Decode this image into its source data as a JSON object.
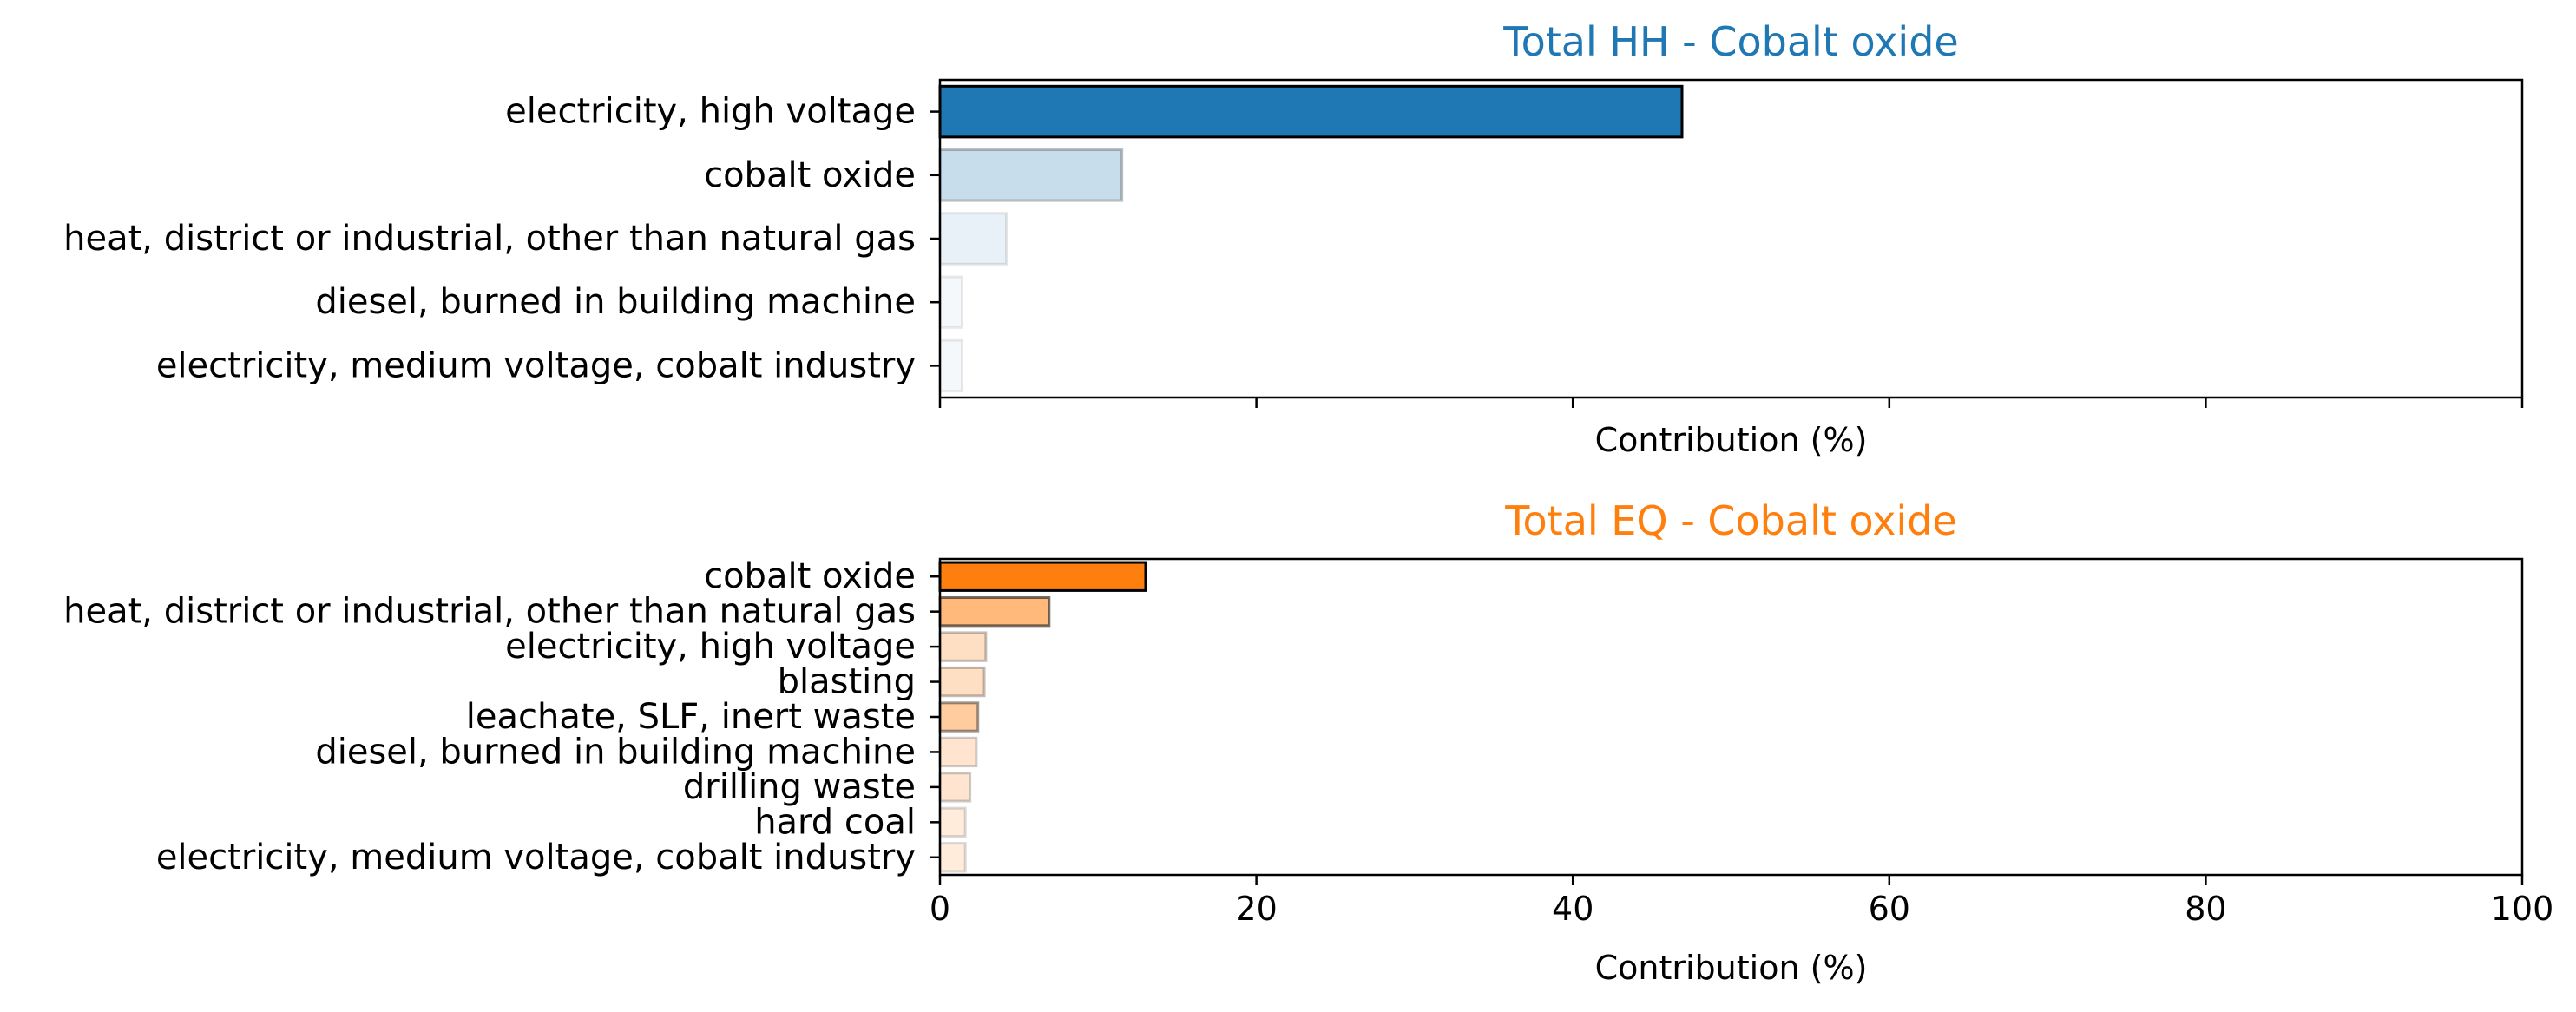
{
  "chart_data": [
    {
      "type": "bar",
      "orientation": "horizontal",
      "title": "Total HH - Cobalt oxide",
      "title_color": "#1f77b4",
      "bar_color": "#1f77b4",
      "xlabel": "Contribution (%)",
      "xlim": [
        0,
        100
      ],
      "xticks": [
        0,
        20,
        40,
        60,
        80,
        100
      ],
      "show_tick_labels": false,
      "categories": [
        "electricity, high voltage",
        "cobalt oxide",
        "heat, district or industrial, other than natural gas",
        "diesel, burned in building machine",
        "electricity, medium voltage, cobalt industry"
      ],
      "values": [
        46.9,
        11.5,
        4.2,
        1.4,
        1.4
      ],
      "opacity": [
        1.0,
        0.25,
        0.1,
        0.05,
        0.05
      ]
    },
    {
      "type": "bar",
      "orientation": "horizontal",
      "title": "Total EQ - Cobalt oxide",
      "title_color": "#ff7f0e",
      "bar_color": "#ff7f0e",
      "xlabel": "Contribution (%)",
      "xlim": [
        0,
        100
      ],
      "xticks": [
        0,
        20,
        40,
        60,
        80,
        100
      ],
      "show_tick_labels": true,
      "categories": [
        "cobalt oxide",
        "heat, district or industrial, other than natural gas",
        "electricity, high voltage",
        "blasting",
        "leachate, SLF, inert waste",
        "diesel, burned in building machine",
        "drilling waste",
        "hard coal",
        "electricity, medium voltage, cobalt industry"
      ],
      "values": [
        13.0,
        6.9,
        2.9,
        2.8,
        2.4,
        2.3,
        1.9,
        1.6,
        1.6
      ],
      "opacity": [
        1.0,
        0.55,
        0.25,
        0.25,
        0.4,
        0.2,
        0.2,
        0.15,
        0.15
      ]
    }
  ]
}
